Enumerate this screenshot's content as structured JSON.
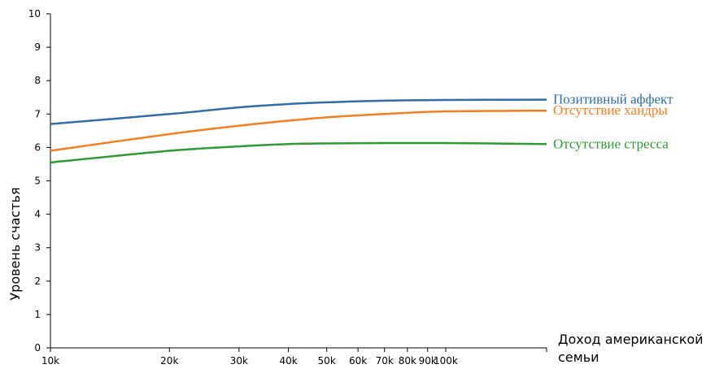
{
  "chart_data": {
    "type": "line",
    "y_label": "Уровень счастья",
    "x_label": "Доход американской семьи",
    "log_x": true,
    "x": [
      10000,
      20000,
      30000,
      40000,
      50000,
      70000,
      100000,
      180000
    ],
    "series": [
      {
        "name": "Позитивный аффект",
        "color": "#2f6ea6",
        "values": [
          6.7,
          7.0,
          7.2,
          7.3,
          7.35,
          7.4,
          7.42,
          7.43
        ]
      },
      {
        "name": "Отсутствие хандры",
        "color": "#f07f22",
        "values": [
          5.9,
          6.4,
          6.65,
          6.8,
          6.9,
          7.0,
          7.08,
          7.1
        ]
      },
      {
        "name": "Отсутствие стресса",
        "color": "#2e9a33",
        "values": [
          5.55,
          5.9,
          6.03,
          6.1,
          6.12,
          6.13,
          6.13,
          6.1
        ]
      }
    ],
    "xlim": [
      10000,
      180000
    ],
    "xticks": [
      {
        "value": 10000,
        "label": "10k"
      },
      {
        "value": 20000,
        "label": "20k"
      },
      {
        "value": 30000,
        "label": "30k"
      },
      {
        "value": 40000,
        "label": "40k"
      },
      {
        "value": 50000,
        "label": "50k"
      },
      {
        "value": 60000,
        "label": "60k"
      },
      {
        "value": 70000,
        "label": "70k"
      },
      {
        "value": 80000,
        "label": "80k"
      },
      {
        "value": 90000,
        "label": "90k"
      },
      {
        "value": 100000,
        "label": "100k"
      }
    ],
    "ylim": [
      0,
      10
    ],
    "yticks": [
      0,
      1,
      2,
      3,
      4,
      5,
      6,
      7,
      8,
      9,
      10
    ]
  }
}
